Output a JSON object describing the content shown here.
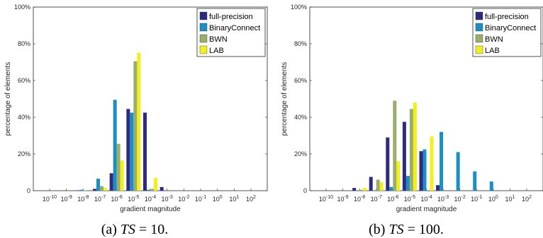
{
  "figures": [
    {
      "caption_prefix": "(a) ",
      "caption_var": "TS",
      "caption_eq": " = 10."
    },
    {
      "caption_prefix": "(b) ",
      "caption_var": "TS",
      "caption_eq": " = 100."
    }
  ],
  "colors": {
    "full-precision": "#2e2a7f",
    "BinaryConnect": "#1a8fc6",
    "BWN": "#9aae6a",
    "LAB": "#f2f01a"
  },
  "chart_data": [
    {
      "type": "bar",
      "xlabel": "gradient magnitude",
      "ylabel": "percentage of elements",
      "ylim": [
        0,
        100
      ],
      "yticks": [
        "0",
        "20%",
        "40%",
        "60%",
        "80%",
        "100%"
      ],
      "categories": [
        "-10",
        "-9",
        "-8",
        "-7",
        "-6",
        "-5",
        "-4",
        "-3",
        "-2",
        "-1",
        "0",
        "1",
        "2"
      ],
      "tick_base": "10",
      "legend_position": "top-right",
      "series": [
        {
          "name": "full-precision",
          "values": [
            0,
            0,
            0.2,
            1,
            9.5,
            44.5,
            42.5,
            2,
            0,
            0,
            0,
            0,
            0
          ]
        },
        {
          "name": "BinaryConnect",
          "values": [
            0,
            0,
            0.5,
            6.5,
            49.5,
            42.5,
            0.5,
            0,
            0,
            0,
            0,
            0,
            0
          ]
        },
        {
          "name": "BWN",
          "values": [
            0,
            0,
            0.2,
            2.5,
            25.5,
            70.5,
            1,
            0,
            0,
            0,
            0,
            0,
            0
          ]
        },
        {
          "name": "LAB",
          "values": [
            0,
            0,
            0,
            1.5,
            16.5,
            75,
            7,
            0,
            0,
            0,
            0,
            0,
            0
          ]
        }
      ]
    },
    {
      "type": "bar",
      "xlabel": "gradient magnitude",
      "ylabel": "percentage of elements",
      "ylim": [
        0,
        100
      ],
      "yticks": [
        "0",
        "20%",
        "40%",
        "60%",
        "80%",
        "100%"
      ],
      "categories": [
        "-10",
        "-9",
        "-8",
        "-7",
        "-6",
        "-5",
        "-4",
        "-3",
        "-2",
        "-1",
        "0",
        "1",
        "2"
      ],
      "tick_base": "10",
      "legend_position": "top-right",
      "series": [
        {
          "name": "full-precision",
          "values": [
            0,
            0,
            1.5,
            7.5,
            29,
            37.5,
            21.5,
            3,
            0,
            0,
            0,
            0,
            0
          ]
        },
        {
          "name": "BinaryConnect",
          "values": [
            0,
            0,
            0,
            0,
            2,
            8,
            22.5,
            32,
            21,
            10.5,
            5,
            0,
            0
          ]
        },
        {
          "name": "BWN",
          "values": [
            0,
            0,
            0.5,
            6,
            49,
            44.5,
            0,
            0,
            0,
            0,
            0,
            0,
            0
          ]
        },
        {
          "name": "LAB",
          "values": [
            0,
            0,
            1.5,
            4.5,
            16,
            48,
            29.5,
            0,
            0,
            0,
            0,
            0,
            0
          ]
        }
      ]
    }
  ]
}
